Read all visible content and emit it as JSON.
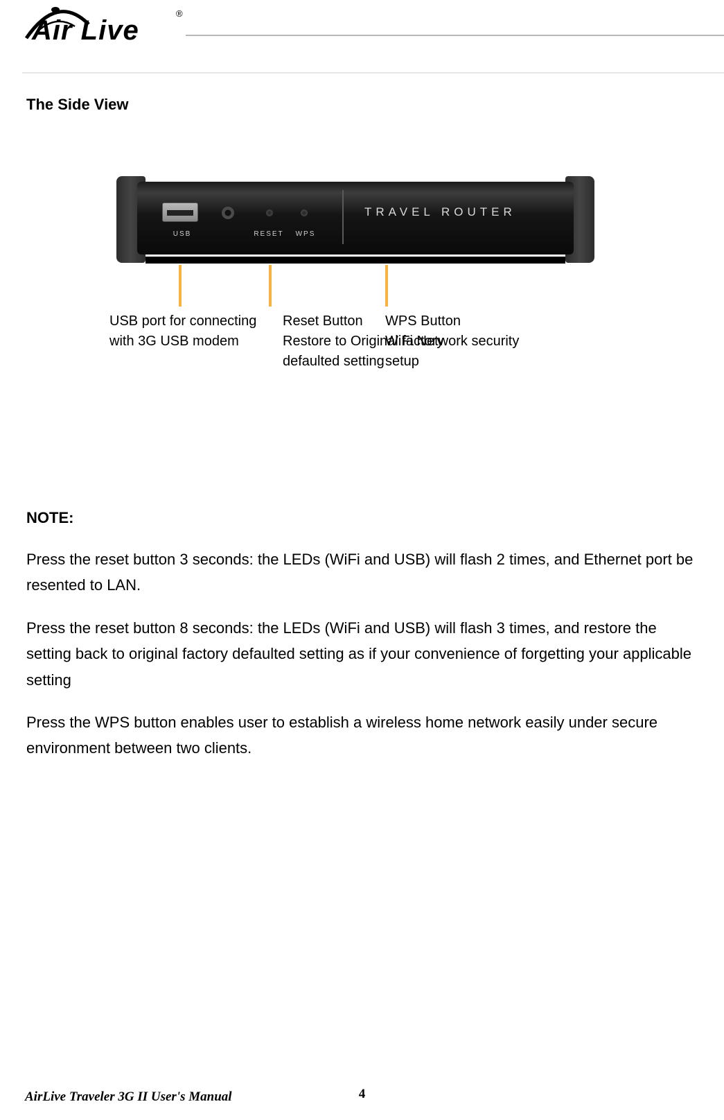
{
  "logo": {
    "brand": "Air Live",
    "registered": "®"
  },
  "section_title": "The Side View",
  "device": {
    "front_text": "TRAVEL ROUTER",
    "port_labels": {
      "usb": "USB",
      "reset": "RESET",
      "wps": "WPS"
    }
  },
  "callouts": {
    "usb": "USB port for connecting with 3G USB modem",
    "reset": "Reset Button\nRestore to Original factory defaulted setting",
    "wps": "WPS Button\nWiFi Network security setup"
  },
  "note": {
    "heading": "NOTE:",
    "p1": "Press the reset button 3 seconds: the LEDs (WiFi and USB) will flash 2 times, and Ethernet port be resented to LAN.",
    "p2": "Press the reset button 8 seconds: the LEDs (WiFi and USB) will flash 3 times, and restore the setting back to original factory defaulted setting as if your convenience of forgetting your applicable setting",
    "p3": "Press the WPS button enables user to establish a wireless home network easily under secure environment between two clients."
  },
  "footer": {
    "title": "AirLive Traveler 3G II User's Manual",
    "page": "4"
  },
  "colors": {
    "leader": "#fbb040",
    "text": "#000000",
    "bg": "#ffffff",
    "hr": "#b8b8b8"
  }
}
